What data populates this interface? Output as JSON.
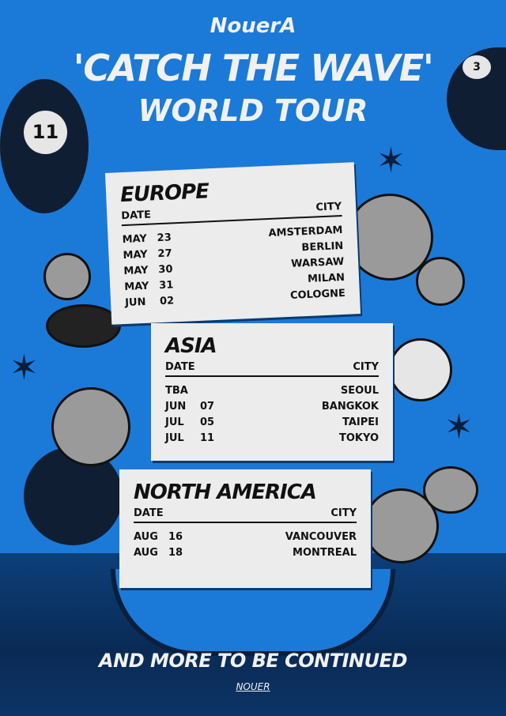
{
  "header": {
    "brand": "NouerA",
    "title": "'CATCH THE WAVE'",
    "subtitle": "WORLD TOUR"
  },
  "columns": {
    "date": "DATE",
    "city": "CITY"
  },
  "regions": [
    {
      "name": "EUROPE",
      "dates": [
        [
          "MAY",
          "23"
        ],
        [
          "MAY",
          "27"
        ],
        [
          "MAY",
          "30"
        ],
        [
          "MAY",
          "31"
        ],
        [
          "JUN",
          "02"
        ]
      ],
      "cities": [
        "AMSTERDAM",
        "BERLIN",
        "WARSAW",
        "MILAN",
        "COLOGNE"
      ]
    },
    {
      "name": "ASIA",
      "dates": [
        [
          "TBA",
          ""
        ],
        [
          "JUN",
          "07"
        ],
        [
          "JUL",
          "05"
        ],
        [
          "JUL",
          "11"
        ]
      ],
      "cities": [
        "SEOUL",
        "BANGKOK",
        "TAIPEI",
        "TOKYO"
      ]
    },
    {
      "name": "NORTH AMERICA",
      "dates": [
        [
          "AUG",
          "16"
        ],
        [
          "AUG",
          "18"
        ]
      ],
      "cities": [
        "VANCOUVER",
        "MONTREAL"
      ]
    }
  ],
  "decor": {
    "ball_left_number": "11",
    "ball_right_number": "3"
  },
  "footer": {
    "text": "AND MORE TO BE CONTINUED",
    "signature": "NOUER"
  },
  "colors": {
    "background": "#1b7ad8",
    "card": "#ececec",
    "text": "#111111"
  }
}
